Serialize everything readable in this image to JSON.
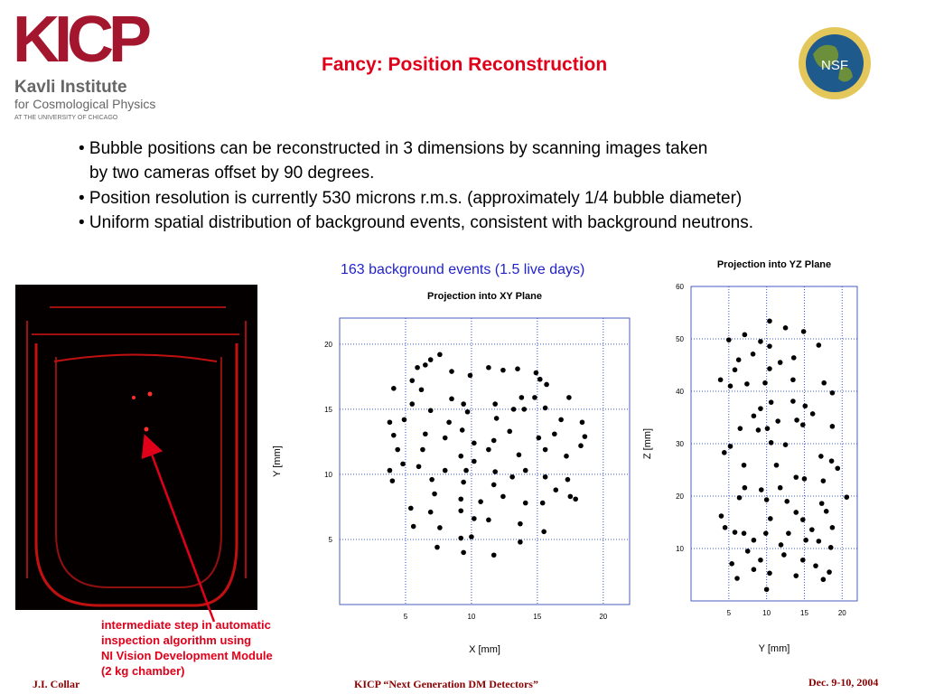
{
  "header": {
    "logo": "KICP",
    "institute": "Kavli Institute",
    "institute_sub": "for Cosmological Physics",
    "institute_uni": "AT THE UNIVERSITY OF CHICAGO",
    "title": "Fancy: Position Reconstruction",
    "nsf": "NSF"
  },
  "bullets": [
    "• Bubble positions can  be reconstructed in 3 dimensions by scanning images taken",
    "by two cameras offset by 90 degrees.",
    "• Position resolution is currently 530 microns r.m.s. (approximately 1/4 bubble diameter)",
    "• Uniform spatial distribution of  background events, consistent with background neutrons."
  ],
  "caption": "163 background events (1.5 live days)",
  "annotation": [
    "intermediate step in automatic",
    "inspection algorithm using",
    "NI Vision Development Module",
    "(2 kg chamber)"
  ],
  "footer": {
    "left": "J.I. Collar",
    "center": "KICP “Next Generation DM Detectors”",
    "right": "Dec. 9-10, 2004"
  },
  "chart_data": [
    {
      "type": "scatter",
      "title": "Projection into XY Plane",
      "xlabel": "X [mm]",
      "ylabel": "Y [mm]",
      "color": "#000000",
      "grid": true,
      "xlim": [
        0,
        22
      ],
      "ylim": [
        0,
        22
      ],
      "xticks": [
        5,
        10,
        15,
        20
      ],
      "yticks": [
        5,
        10,
        15,
        20
      ],
      "x": [
        7.6,
        6.5,
        5.9,
        6.9,
        8.5,
        9.9,
        11.3,
        12.4,
        13.5,
        14.9,
        15.2,
        15.7,
        4.1,
        5.5,
        6.2,
        8.5,
        9.4,
        11.8,
        13.8,
        14.8,
        17.4,
        5.5,
        6.9,
        3.8,
        4.9,
        8.3,
        9.7,
        11.9,
        13.2,
        14.0,
        15.6,
        16.8,
        18.4,
        4.1,
        6.5,
        8.0,
        9.3,
        10.2,
        11.7,
        12.9,
        15.1,
        16.3,
        18.6,
        4.4,
        6.3,
        9.2,
        10.2,
        11.3,
        13.6,
        15.6,
        17.2,
        18.3,
        3.8,
        4.8,
        6.0,
        8.0,
        9.6,
        11.8,
        14.1,
        15.6,
        17.3,
        4.0,
        7.0,
        9.4,
        11.7,
        13.1,
        16.4,
        17.5,
        17.9,
        7.2,
        9.2,
        10.7,
        12.4,
        14.1,
        15.4,
        5.4,
        6.9,
        9.2,
        10.2,
        11.3,
        13.7,
        5.6,
        7.6,
        9.2,
        10.0,
        13.7,
        15.5,
        7.4,
        9.4,
        11.7
      ],
      "y": [
        19.2,
        18.4,
        18.2,
        18.8,
        17.9,
        17.6,
        18.2,
        18.0,
        18.1,
        17.8,
        17.3,
        16.9,
        16.6,
        17.2,
        16.5,
        15.8,
        15.4,
        15.4,
        15.9,
        15.9,
        15.9,
        15.4,
        14.9,
        14.0,
        14.2,
        14.0,
        14.8,
        14.3,
        15.0,
        15.0,
        15.1,
        14.2,
        14.0,
        13.0,
        13.1,
        12.8,
        13.4,
        12.4,
        12.6,
        13.3,
        12.8,
        13.1,
        12.9,
        11.9,
        11.9,
        11.4,
        11.0,
        11.9,
        11.5,
        11.9,
        11.4,
        12.2,
        10.3,
        10.8,
        10.6,
        10.3,
        10.3,
        10.2,
        10.3,
        9.8,
        9.6,
        9.5,
        9.6,
        9.4,
        9.2,
        9.8,
        8.8,
        8.3,
        8.1,
        8.5,
        8.1,
        7.9,
        8.3,
        7.8,
        7.8,
        7.4,
        7.1,
        7.2,
        6.6,
        6.5,
        6.2,
        6.0,
        5.9,
        5.1,
        5.2,
        4.8,
        5.6,
        4.4,
        4.0,
        3.8
      ]
    },
    {
      "type": "scatter",
      "title": "Projection into YZ Plane",
      "xlabel": "Y [mm]",
      "ylabel": "Z [mm]",
      "color": "#000000",
      "grid": true,
      "xlim": [
        0,
        22
      ],
      "ylim": [
        0,
        60
      ],
      "xticks": [
        5,
        10,
        15,
        20
      ],
      "yticks": [
        10,
        20,
        30,
        40,
        50,
        60
      ],
      "x": [
        10.4,
        7.1,
        5.0,
        9.2,
        12.5,
        14.9,
        16.9,
        8.2,
        6.3,
        10.4,
        11.8,
        13.6,
        5.8,
        10.4,
        3.9,
        5.2,
        7.4,
        9.8,
        13.5,
        17.6,
        18.7,
        13.5,
        15.1,
        10.6,
        9.2,
        16.1,
        14.0,
        8.3,
        11.5,
        6.5,
        8.9,
        10.1,
        14.8,
        18.7,
        5.2,
        4.4,
        10.6,
        12.5,
        17.2,
        18.6,
        7.0,
        11.3,
        19.4,
        15.0,
        13.9,
        17.5,
        7.1,
        9.3,
        11.8,
        6.4,
        10.0,
        12.7,
        17.3,
        20.6,
        13.9,
        4.0,
        10.5,
        14.8,
        17.9,
        4.5,
        7.0,
        9.9,
        12.9,
        16.0,
        18.7,
        5.8,
        8.3,
        11.9,
        15.2,
        16.9,
        18.5,
        7.5,
        5.4,
        9.2,
        12.3,
        14.8,
        16.5,
        8.3,
        10.4,
        13.9,
        6.1,
        18.3,
        17.5,
        10.0
      ],
      "y": [
        53.4,
        50.8,
        49.8,
        49.5,
        52.1,
        51.4,
        48.8,
        47.1,
        46.0,
        48.6,
        45.5,
        46.4,
        44.1,
        44.3,
        42.2,
        41.0,
        41.4,
        41.6,
        42.2,
        41.6,
        39.7,
        38.1,
        37.2,
        37.9,
        36.7,
        35.7,
        34.5,
        35.3,
        34.3,
        32.9,
        32.6,
        32.9,
        33.6,
        33.3,
        29.5,
        28.3,
        30.2,
        29.8,
        27.6,
        26.7,
        25.9,
        25.9,
        25.3,
        23.3,
        23.6,
        22.9,
        21.6,
        21.2,
        21.6,
        19.7,
        19.3,
        19.0,
        18.6,
        19.8,
        16.9,
        16.2,
        15.7,
        15.5,
        17.1,
        14.0,
        12.9,
        12.9,
        12.9,
        13.6,
        14.0,
        13.1,
        11.6,
        10.7,
        11.6,
        11.4,
        10.2,
        9.5,
        7.1,
        7.8,
        8.8,
        7.8,
        6.7,
        6.0,
        5.3,
        4.8,
        4.3,
        5.5,
        4.1,
        2.2
      ]
    }
  ]
}
